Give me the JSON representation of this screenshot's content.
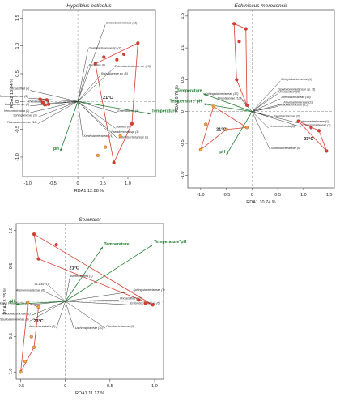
{
  "chart_data": [
    {
      "type": "scatter",
      "title": "Hypsibius ecticolus",
      "xlabel": "RDA1  12.88 %",
      "ylabel": "RDA2  10.04 %",
      "xlim": [
        -1.1,
        1.55
      ],
      "ylim": [
        -1.35,
        1.65
      ],
      "xticks": [
        "-1.0",
        "-0.5",
        "0",
        "0.5",
        "1.0"
      ],
      "xtick_values": [
        -1.0,
        -0.5,
        0,
        0.5,
        1.0
      ],
      "yticks": [
        "-1.0",
        "-0.5",
        "0",
        "0.5",
        "1.0",
        "1.5"
      ],
      "ytick_values": [
        -1.0,
        -0.5,
        0,
        0.5,
        1.0,
        1.5
      ],
      "env_color": "#1e7b2e",
      "species_color": "#333333",
      "hull_color": "#e03a2f",
      "env_vectors": [
        {
          "label": "Temperature",
          "x": 1.45,
          "y": -0.22
        },
        {
          "label": "pH",
          "x": -0.35,
          "y": -0.9
        }
      ],
      "species_vectors": [
        {
          "label": "Enterobacteriaceae (11)",
          "x": 0.55,
          "y": 1.38
        },
        {
          "label": "Oxalobacteraceae sp. (7)",
          "x": 0.2,
          "y": 0.93
        },
        {
          "label": "Bacillales (6)",
          "x": 0.2,
          "y": 0.62
        },
        {
          "label": "Enterobacteriaceae sp. (13)",
          "x": 0.72,
          "y": 0.6
        },
        {
          "label": "Rhizobiaceae sp. (5)",
          "x": 0.45,
          "y": 0.47
        },
        {
          "label": "Unclassified (4)",
          "x": -0.95,
          "y": 0.2
        },
        {
          "label": "Comamonadaceae (9)",
          "x": -0.98,
          "y": 0.06
        },
        {
          "label": "Rhizobiaceae (8)",
          "x": -0.55,
          "y": -0.03
        },
        {
          "label": "Oxalobacter sp. (3)",
          "x": -0.95,
          "y": -0.08
        },
        {
          "label": "Verrucomicrobia (2)",
          "x": -0.95,
          "y": -0.2
        },
        {
          "label": "Sphingomonas (2)",
          "x": -0.8,
          "y": -0.28
        },
        {
          "label": "Flavobacteriaceae (10)",
          "x": -0.8,
          "y": -0.4
        },
        {
          "label": "Enterobacter (4)",
          "x": 0.78,
          "y": -0.2
        },
        {
          "label": "Bacillus (6)",
          "x": 0.75,
          "y": -0.48
        },
        {
          "label": "Pseudomonas sp. (1)",
          "x": 0.65,
          "y": -0.58
        },
        {
          "label": "Enterobacteriaceae (3)",
          "x": 0.8,
          "y": -0.67
        },
        {
          "label": "Xanthobacteraceae (1)",
          "x": 0.1,
          "y": -0.65
        }
      ],
      "groups": [
        {
          "label": "21°C",
          "label_x": 0.6,
          "label_y": 0.05,
          "color": "#e03a2f",
          "x": [
            0.35,
            0.52,
            0.78,
            0.92,
            1.2,
            1.08,
            0.72
          ],
          "y": [
            0.68,
            0.8,
            0.75,
            0.85,
            1.05,
            -0.4,
            -1.1
          ],
          "hull_x": [
            0.35,
            1.2,
            1.08,
            0.72,
            0.35
          ],
          "hull_y": [
            0.68,
            1.05,
            -0.4,
            -1.1,
            0.68
          ]
        },
        {
          "label": "",
          "color": "#f2a33a",
          "x": [
            0.4,
            0.55,
            0.85
          ],
          "y": [
            -0.97,
            -0.82,
            -0.62
          ],
          "hull_x": [],
          "hull_y": []
        },
        {
          "label": "",
          "color": "#e03a2f",
          "x": [
            -0.75,
            -0.7,
            -0.62,
            -0.66,
            -0.58
          ],
          "y": [
            0.04,
            -0.02,
            0.03,
            -0.06,
            -0.05
          ],
          "hull_x": [
            -0.78,
            -0.58,
            -0.62,
            -0.78
          ],
          "hull_y": [
            0.06,
            0.02,
            -0.08,
            0.06
          ]
        }
      ]
    },
    {
      "type": "scatter",
      "title": "Echiniscus merokensis",
      "xlabel": "RDA1  10.74 %",
      "ylabel": "RDA2  8.70 %",
      "xlim": [
        -1.25,
        1.6
      ],
      "ylim": [
        -1.2,
        1.6
      ],
      "xticks": [
        "-1.0",
        "-0.5",
        "0",
        "0.5",
        "1.0",
        "1.5"
      ],
      "xtick_values": [
        -1.0,
        -0.5,
        0,
        0.5,
        1.0,
        1.5
      ],
      "yticks": [
        "-1.0",
        "-0.5",
        "0",
        "0.5",
        "1.0",
        "1.5"
      ],
      "ytick_values": [
        -1.0,
        -0.5,
        0,
        0.5,
        1.0,
        1.5
      ],
      "env_color": "#1e7b2e",
      "species_color": "#333333",
      "hull_color": "#e03a2f",
      "env_vectors": [
        {
          "label": "Temperature",
          "x": -0.95,
          "y": 0.28
        },
        {
          "label": "Temperature*pH",
          "x": -0.95,
          "y": 0.12
        },
        {
          "label": "pH",
          "x": -0.5,
          "y": -0.68
        }
      ],
      "species_vectors": [
        {
          "label": "Methylobacteriaceae (4)",
          "x": 0.55,
          "y": 0.48
        },
        {
          "label": "Sphingomonadaceae sp. (3)",
          "x": 0.5,
          "y": 0.32
        },
        {
          "label": "Unclassified (20)",
          "x": 0.5,
          "y": 0.28
        },
        {
          "label": "Rhizobiaceae (12)",
          "x": -0.2,
          "y": 0.18
        },
        {
          "label": "Acetobacteraceae (16)",
          "x": 0.55,
          "y": 0.2
        },
        {
          "label": "Flavobacteriaceae (13)",
          "x": 0.6,
          "y": 0.12
        },
        {
          "label": "Oxalobacteraceae (15)",
          "x": 0.5,
          "y": 0.08
        },
        {
          "label": "Sphingobacteriaceae (17)",
          "x": -0.25,
          "y": 0.25
        },
        {
          "label": "Paenibacillaceae (2)",
          "x": 0.4,
          "y": -0.1
        },
        {
          "label": "Enterobacteriaceae (1)",
          "x": 0.9,
          "y": -0.18
        },
        {
          "label": "Comamonadaceae (1)",
          "x": 0.95,
          "y": -0.24
        },
        {
          "label": "Xanthobacteraceae (5)",
          "x": 0.35,
          "y": -0.6
        },
        {
          "label": "Verrucomicrobia (3)",
          "x": 0.32,
          "y": -0.26
        }
      ],
      "groups": [
        {
          "label": "21°C",
          "label_x": -0.6,
          "label_y": -0.3,
          "color": "#f2a33a",
          "x": [
            -0.75,
            -0.9,
            -1.0,
            -0.5,
            -0.1
          ],
          "y": [
            0.08,
            -0.2,
            -0.6,
            -0.28,
            -0.25
          ],
          "hull_x": [
            -0.75,
            -0.1,
            -0.5,
            -1.0,
            -0.75
          ],
          "hull_y": [
            0.08,
            -0.25,
            -0.28,
            -0.6,
            0.08
          ]
        },
        {
          "label": "",
          "color": "#e03a2f",
          "x": [
            -0.35,
            -0.12,
            -0.25,
            -0.3,
            -0.1
          ],
          "y": [
            1.38,
            1.3,
            1.1,
            0.5,
            0.1
          ],
          "hull_x": [
            -0.35,
            -0.12,
            -0.1,
            -0.3,
            -0.35
          ],
          "hull_y": [
            1.38,
            1.3,
            0.1,
            0.5,
            1.38
          ]
        },
        {
          "label": "23°C",
          "label_x": 1.1,
          "label_y": -0.45,
          "color": "#e03a2f",
          "x": [
            0.9,
            1.15,
            1.3,
            1.45
          ],
          "y": [
            -0.15,
            -0.25,
            -0.3,
            -0.62
          ],
          "hull_x": [
            0.9,
            1.3,
            1.45,
            0.9
          ],
          "hull_y": [
            -0.15,
            -0.3,
            -0.62,
            -0.15
          ]
        }
      ]
    },
    {
      "type": "scatter",
      "title": "Seawater",
      "xlabel": "RDA1  11.17 %",
      "ylabel": "RDA2  8.35 %",
      "xlim": [
        -0.55,
        1.1
      ],
      "ylim": [
        -1.1,
        1.1
      ],
      "xticks": [
        "-0.5",
        "0",
        "0.5",
        "1.0"
      ],
      "xtick_values": [
        -0.5,
        0,
        0.5,
        1.0
      ],
      "yticks": [
        "-1.0",
        "-0.5",
        "0",
        "0.5",
        "1.0"
      ],
      "ytick_values": [
        -1.0,
        -0.5,
        0,
        0.5,
        1.0
      ],
      "env_color": "#1e7b2e",
      "species_color": "#333333",
      "hull_color": "#e03a2f",
      "env_vectors": [
        {
          "label": "Temperature",
          "x": 0.42,
          "y": 0.77
        },
        {
          "label": "Temperature*pH",
          "x": 0.98,
          "y": 0.8
        },
        {
          "label": "pH",
          "x": -0.55,
          "y": -0.04
        }
      ],
      "species_vectors": [
        {
          "label": "Bacteroidetes (4)",
          "x": 0.05,
          "y": 0.33
        },
        {
          "label": "CL1-49 (1)",
          "x": -0.18,
          "y": 0.22
        },
        {
          "label": "Alteromonadaceae (6)",
          "x": -0.22,
          "y": 0.13
        },
        {
          "label": "Sphingobacteriaceae (7)",
          "x": 0.75,
          "y": 0.14
        },
        {
          "label": "Unclassified (10)",
          "x": 0.6,
          "y": 0.02
        },
        {
          "label": "Enterobacteriaceae (6)",
          "x": 0.72,
          "y": -0.05
        },
        {
          "label": "Candidatus Pelagibacter (5)",
          "x": -0.4,
          "y": -0.05
        },
        {
          "label": "Rhodobacteraceae (2)",
          "x": -0.38,
          "y": -0.2
        },
        {
          "label": "Pseudoalteromonas (3)",
          "x": -0.4,
          "y": -0.28
        },
        {
          "label": "Alteromonadales (3)",
          "x": -0.1,
          "y": -0.38
        },
        {
          "label": "Lachnospiraceae (10)",
          "x": 0.1,
          "y": -0.4
        },
        {
          "label": "Flavobacteriaceae (9)",
          "x": 0.45,
          "y": -0.38
        }
      ],
      "groups": [
        {
          "label": "21°C",
          "label_x": 0.1,
          "label_y": 0.45,
          "color": "#e03a2f",
          "x": [
            -0.35,
            -0.1,
            -0.3,
            0.82,
            0.9,
            0.98
          ],
          "y": [
            0.95,
            0.8,
            0.6,
            0.02,
            -0.03,
            -0.05
          ],
          "hull_x": [
            -0.35,
            0.98,
            -0.3,
            -0.35
          ],
          "hull_y": [
            0.95,
            -0.05,
            0.6,
            0.95
          ]
        },
        {
          "label": "23°C",
          "label_x": -0.3,
          "label_y": -0.3,
          "color": "#f2a33a",
          "x": [
            -0.42,
            -0.3,
            -0.38,
            -0.35,
            -0.45,
            -0.5
          ],
          "y": [
            -0.02,
            -0.08,
            -0.5,
            -0.65,
            -0.85,
            -1.0
          ],
          "hull_x": [
            -0.42,
            -0.3,
            -0.35,
            -0.5,
            -0.42
          ],
          "hull_y": [
            -0.02,
            -0.08,
            -0.65,
            -1.0,
            -0.02
          ]
        }
      ]
    }
  ]
}
